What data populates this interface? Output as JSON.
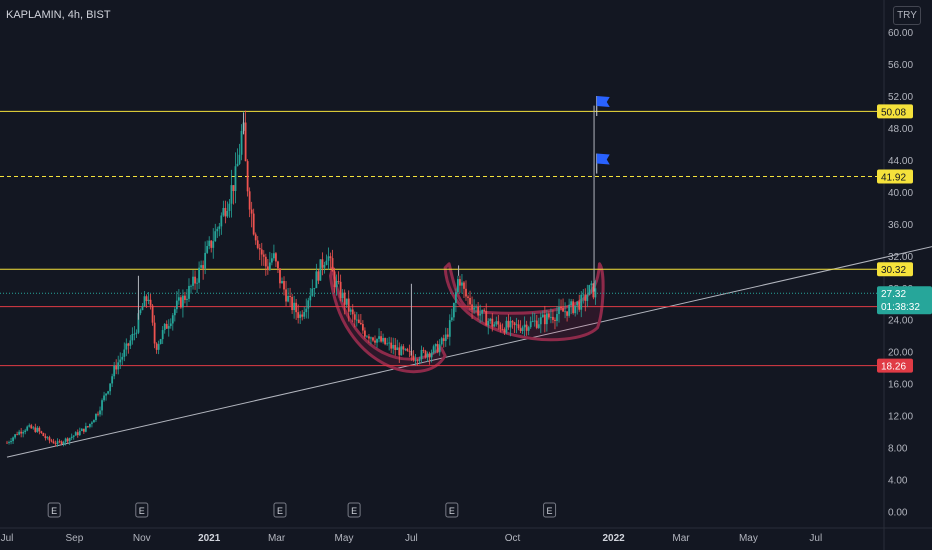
{
  "header": {
    "title": "KAPLAMIN, 4h, BIST",
    "currency": "TRY"
  },
  "chart_data": {
    "type": "candlestick",
    "symbol": "KAPLAMIN",
    "interval": "4h",
    "exchange": "BIST",
    "currency": "TRY",
    "y_ticks": [
      "60.00",
      "56.00",
      "52.00",
      "48.00",
      "44.00",
      "40.00",
      "36.00",
      "32.00",
      "28.00",
      "24.00",
      "20.00",
      "16.00",
      "12.00",
      "8.00",
      "4.00",
      "0.00"
    ],
    "ylim": [
      0,
      61
    ],
    "x_ticks": [
      {
        "label": "Jul",
        "month": 0
      },
      {
        "label": "Sep",
        "month": 2
      },
      {
        "label": "Nov",
        "month": 4
      },
      {
        "label": "2021",
        "month": 6
      },
      {
        "label": "Mar",
        "month": 8
      },
      {
        "label": "May",
        "month": 10
      },
      {
        "label": "Jul",
        "month": 12
      },
      {
        "label": "Oct",
        "month": 15
      },
      {
        "label": "2022",
        "month": 18
      },
      {
        "label": "Mar",
        "month": 20
      },
      {
        "label": "May",
        "month": 22
      },
      {
        "label": "Jul",
        "month": 24
      }
    ],
    "horizontal_levels": [
      {
        "price": 50.08,
        "label": "50.08",
        "style": "solid",
        "color": "#f5e23b",
        "badge_bg": "#f5e23b",
        "badge_fg": "#131722"
      },
      {
        "price": 41.92,
        "label": "41.92",
        "style": "dashed",
        "color": "#f5e23b",
        "badge_bg": "#f5e23b",
        "badge_fg": "#131722"
      },
      {
        "price": 30.32,
        "label": "30.32",
        "style": "solid",
        "color": "#f5e23b",
        "badge_bg": "#f5e23b",
        "badge_fg": "#131722"
      },
      {
        "price": 25.64,
        "label": "25.64",
        "style": "solid",
        "color": "#e03b45",
        "badge_bg": "#e03b45",
        "badge_fg": "#ffffff"
      },
      {
        "price": 18.26,
        "label": "18.26",
        "style": "solid",
        "color": "#e03b45",
        "badge_bg": "#e03b45",
        "badge_fg": "#ffffff"
      }
    ],
    "last_price": {
      "price": 27.32,
      "label": "27.32",
      "countdown": "01:38:32",
      "color": "#26a69a"
    },
    "trendline": [
      {
        "month": 0,
        "price": 6.8
      },
      {
        "month": 27.5,
        "price": 33.2
      }
    ],
    "earnings_markers": {
      "label": "E",
      "months": [
        1.4,
        4.0,
        8.1,
        10.3,
        13.2,
        16.1
      ]
    },
    "flags": [
      {
        "month": 17.5,
        "price": 51.5,
        "color": "#2962ff"
      },
      {
        "month": 17.5,
        "price": 44.3,
        "color": "#2962ff"
      }
    ],
    "cup_handle_annotation": {
      "cup": {
        "from_month": 9.6,
        "to_month": 13.0
      },
      "handle": {
        "from_month": 13.0,
        "to_month": 17.7
      }
    },
    "price_path": [
      [
        0,
        8.6
      ],
      [
        0.3,
        9.8
      ],
      [
        0.6,
        10.5
      ],
      [
        0.9,
        10.2
      ],
      [
        1.2,
        9.0
      ],
      [
        1.5,
        8.5
      ],
      [
        1.8,
        9.1
      ],
      [
        2.1,
        9.8
      ],
      [
        2.4,
        10.6
      ],
      [
        2.7,
        12.5
      ],
      [
        3.0,
        15.5
      ],
      [
        3.2,
        18.0
      ],
      [
        3.5,
        20.0
      ],
      [
        3.8,
        22.5
      ],
      [
        4.0,
        25.5
      ],
      [
        4.2,
        27.0
      ],
      [
        4.4,
        20.5
      ],
      [
        4.7,
        23.0
      ],
      [
        5.0,
        25.5
      ],
      [
        5.3,
        27.0
      ],
      [
        5.6,
        29.0
      ],
      [
        5.9,
        32.0
      ],
      [
        6.2,
        35.0
      ],
      [
        6.5,
        38.5
      ],
      [
        6.8,
        42.0
      ],
      [
        7.0,
        48.5
      ],
      [
        7.1,
        42.0
      ],
      [
        7.3,
        36.0
      ],
      [
        7.5,
        33.0
      ],
      [
        7.7,
        30.5
      ],
      [
        7.9,
        32.0
      ],
      [
        8.1,
        29.0
      ],
      [
        8.4,
        26.0
      ],
      [
        8.7,
        24.5
      ],
      [
        9.0,
        27.5
      ],
      [
        9.3,
        30.5
      ],
      [
        9.5,
        32.5
      ],
      [
        9.7,
        29.0
      ],
      [
        10.0,
        26.5
      ],
      [
        10.3,
        24.0
      ],
      [
        10.6,
        22.5
      ],
      [
        10.9,
        21.8
      ],
      [
        11.2,
        21.0
      ],
      [
        11.5,
        20.4
      ],
      [
        11.8,
        19.8
      ],
      [
        12.1,
        19.4
      ],
      [
        12.4,
        19.8
      ],
      [
        12.7,
        20.2
      ],
      [
        13.0,
        21.5
      ],
      [
        13.2,
        24.0
      ],
      [
        13.4,
        29.5
      ],
      [
        13.6,
        27.0
      ],
      [
        13.8,
        26.0
      ],
      [
        14.1,
        24.5
      ],
      [
        14.4,
        23.5
      ],
      [
        14.7,
        23.2
      ],
      [
        15.0,
        23.0
      ],
      [
        15.3,
        23.3
      ],
      [
        15.6,
        23.6
      ],
      [
        15.9,
        24.0
      ],
      [
        16.2,
        24.6
      ],
      [
        16.5,
        25.0
      ],
      [
        16.8,
        25.6
      ],
      [
        17.1,
        26.4
      ],
      [
        17.3,
        27.8
      ],
      [
        17.5,
        27.32
      ]
    ]
  }
}
